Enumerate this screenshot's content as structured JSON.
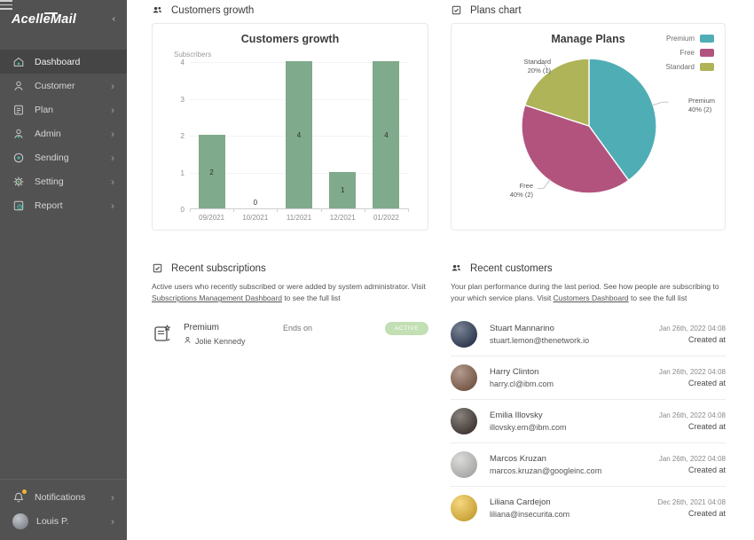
{
  "app": {
    "logo_pre": "Acelle",
    "logo_post": "ail",
    "logo_m": "M"
  },
  "sidebar": {
    "items": [
      {
        "label": "Dashboard",
        "icon": "home-icon",
        "active": true,
        "chevron": false
      },
      {
        "label": "Customer",
        "icon": "person-icon",
        "active": false,
        "chevron": true
      },
      {
        "label": "Plan",
        "icon": "plan-icon",
        "active": false,
        "chevron": true
      },
      {
        "label": "Admin",
        "icon": "admin-icon",
        "active": false,
        "chevron": true
      },
      {
        "label": "Sending",
        "icon": "sending-icon",
        "active": false,
        "chevron": true
      },
      {
        "label": "Setting",
        "icon": "gear-icon",
        "active": false,
        "chevron": true
      },
      {
        "label": "Report",
        "icon": "report-icon",
        "active": false,
        "chevron": true
      }
    ],
    "bottom_items": [
      {
        "label": "Notifications",
        "icon": "bell-icon",
        "chevron": true,
        "has_badge_dot": true
      },
      {
        "label": "Louis P.",
        "icon": "user-avatar",
        "chevron": true,
        "avatar_color": "#9b9fa4"
      }
    ]
  },
  "sections": {
    "customers_growth": {
      "title": "Customers growth",
      "icon": "group-icon"
    },
    "plans_chart": {
      "title": "Plans chart",
      "icon": "clipboard-check-icon"
    },
    "recent_subscriptions": {
      "title": "Recent subscriptions",
      "icon": "clipboard-check-icon",
      "description_pre": "Active users who recently subscribed or were added by system administrator. Visit ",
      "link_text": "Subscriptions Management Dashboard",
      "description_post": " to see the full list",
      "item": {
        "plan": "Premium",
        "user": "Jolie Kennedy",
        "ends_on_label": "Ends on",
        "status": "ACTIVE",
        "status_bg": "#c3dfb4"
      }
    },
    "recent_customers": {
      "title": "Recent customers",
      "icon": "group-icon",
      "description_pre": "Your plan performance during the last period. See how people are subscribing to your which service plans. Visit ",
      "link_text": "Customers Dashboard",
      "description_post": " to see the full list",
      "created_label": "Created at",
      "customers": [
        {
          "name": "Stuart Mannarino",
          "email": "stuart.lemon@thenetwork.io",
          "date": "Jan 26th, 2022 04:08",
          "created_label": "Created at",
          "avatar_color": "#33415c"
        },
        {
          "name": "Harry Clinton",
          "email": "harry.cl@ibm.com",
          "date": "Jan 26th, 2022 04:08",
          "created_label": "Created at",
          "avatar_color": "#8a6552"
        },
        {
          "name": "Emilia Illovsky",
          "email": "illovsky.em@ibm.com",
          "date": "Jan 26th, 2022 04:08",
          "created_label": "Created at",
          "avatar_color": "#4a3f3a"
        },
        {
          "name": "Marcos Kruzan",
          "email": "marcos.kruzan@googleinc.com",
          "date": "Jan 26th, 2022 04:08",
          "created_label": "Created at",
          "avatar_color": "#c9c9c7"
        },
        {
          "name": "Liliana Cardejon",
          "email": "liliana@insecurita.com",
          "date": "Dec 26th, 2021 04:08",
          "created_label": "Created at",
          "avatar_color": "#f0c23c"
        }
      ]
    }
  },
  "chart_data": [
    {
      "type": "bar",
      "title": "Customers growth",
      "ylabel": "Subscribers",
      "xlabel": "",
      "categories": [
        "09/2021",
        "10/2021",
        "11/2021",
        "12/2021",
        "01/2022"
      ],
      "values": [
        2,
        0,
        4,
        1,
        4
      ],
      "ylim": [
        0,
        4
      ],
      "yticks": [
        0,
        1,
        2,
        3,
        4
      ],
      "bar_color": "#7faa8b",
      "grid": true,
      "value_labels": true
    },
    {
      "type": "pie",
      "title": "Manage Plans",
      "legend_position": "top-right",
      "slices": [
        {
          "label": "Premium",
          "percent": 40,
          "count": 2,
          "color": "#4fadb5",
          "callout_line2": "40% (2)"
        },
        {
          "label": "Free",
          "percent": 40,
          "count": 2,
          "color": "#b2537e",
          "callout_line2": "40% (2)"
        },
        {
          "label": "Standard",
          "percent": 20,
          "count": 1,
          "color": "#aeb457",
          "callout_line2": "20% (1)"
        }
      ]
    }
  ],
  "colors": {
    "sidebar_bg": "#525252",
    "sidebar_active": "#454545",
    "accent_teal": "#3bbfad",
    "notification_dot": "#f0b62f",
    "bar_green": "#7faa8b",
    "pie_premium": "#4fadb5",
    "pie_free": "#b2537e",
    "pie_standard": "#aeb457",
    "badge_green": "#c3dfb4"
  }
}
